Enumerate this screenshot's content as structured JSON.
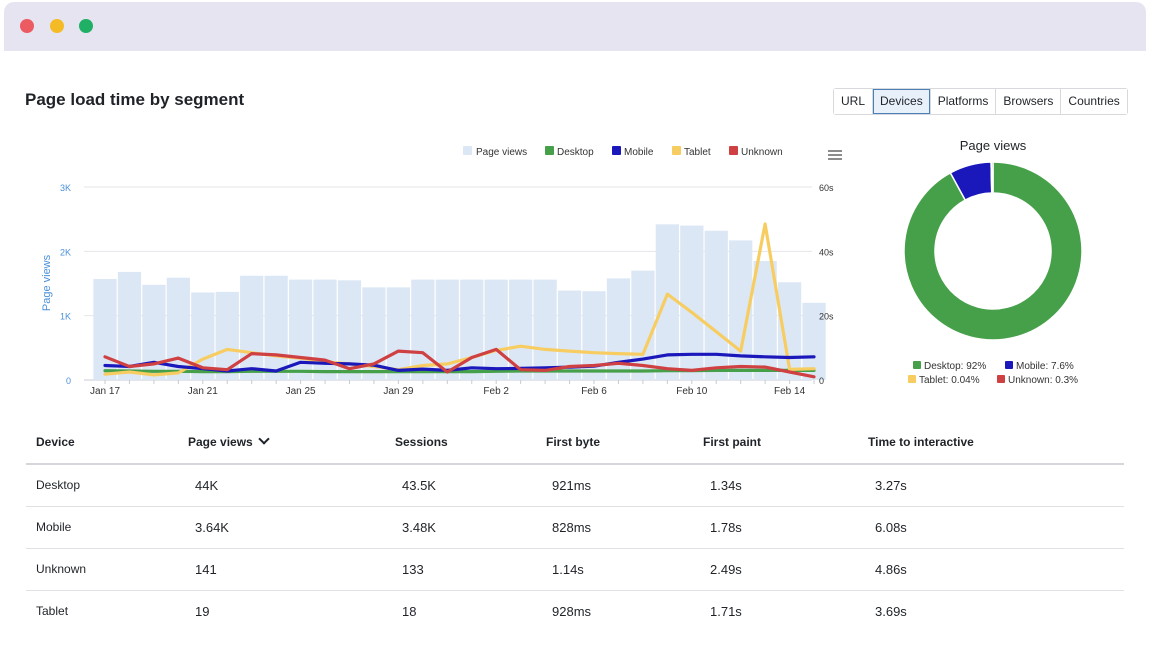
{
  "window": {
    "controls": [
      "close",
      "minimize",
      "maximize"
    ]
  },
  "header": {
    "title": "Page load time by segment"
  },
  "segments": {
    "items": [
      "URL",
      "Devices",
      "Platforms",
      "Browsers",
      "Countries"
    ],
    "active": "Devices"
  },
  "colors": {
    "page_views": "#dce7f5",
    "desktop": "#46a049",
    "mobile": "#1a18bb",
    "tablet": "#f7cd62",
    "unknown": "#cf4043",
    "axis_left": "#4a90d9"
  },
  "chart_data": [
    {
      "type": "bar+line",
      "title": "",
      "legend": [
        "Page views",
        "Desktop",
        "Mobile",
        "Tablet",
        "Unknown"
      ],
      "legend_position": "top-right",
      "ylabel": "Page views",
      "y_left_ticks": [
        "0",
        "1K",
        "2K",
        "3K"
      ],
      "y_left_range": [
        0,
        3000
      ],
      "y_right_ticks": [
        "0",
        "20s",
        "40s",
        "60s"
      ],
      "y_right_range": [
        0,
        60
      ],
      "x_ticks": [
        "Jan 17",
        "Jan 21",
        "Jan 25",
        "Jan 29",
        "Feb 2",
        "Feb 6",
        "Feb 10",
        "Feb 14"
      ],
      "x_start_day": 17,
      "page_views": [
        1570,
        1680,
        1480,
        1590,
        1360,
        1370,
        1620,
        1620,
        1560,
        1560,
        1550,
        1440,
        1440,
        1560,
        1560,
        1560,
        1560,
        1560,
        1560,
        1390,
        1380,
        1580,
        1700,
        2420,
        2400,
        2320,
        2170,
        1850,
        1520,
        1200
      ],
      "series": [
        {
          "name": "Desktop",
          "values": [
            2.9,
            2.8,
            2.7,
            2.7,
            2.6,
            2.6,
            2.7,
            2.7,
            2.7,
            2.6,
            2.6,
            2.6,
            2.6,
            2.6,
            2.6,
            2.6,
            2.7,
            2.8,
            2.8,
            2.8,
            2.8,
            2.8,
            2.8,
            2.9,
            2.9,
            3.0,
            3.0,
            3.0,
            3.0,
            3.0
          ]
        },
        {
          "name": "Mobile",
          "values": [
            4.5,
            4.2,
            5.5,
            4.2,
            3.5,
            2.8,
            3.5,
            2.8,
            5.5,
            5.2,
            5.0,
            4.6,
            3.0,
            3.4,
            3.0,
            3.8,
            3.5,
            3.6,
            3.8,
            4.0,
            4.3,
            5.5,
            6.5,
            7.8,
            8.0,
            8.0,
            7.5,
            7.2,
            7.0,
            7.2
          ]
        },
        {
          "name": "Tablet",
          "values": [
            1.8,
            2.5,
            1.6,
            2.2,
            6.5,
            9.5,
            8.5,
            7.5,
            6.8,
            5.6,
            5.0,
            4.2,
            3.2,
            4.5,
            5.0,
            7.0,
            9.2,
            10.5,
            9.5,
            9.0,
            8.5,
            8.2,
            8.0,
            26.7,
            21.0,
            15.0,
            9.0,
            48.5,
            3.3,
            3.5
          ]
        },
        {
          "name": "Unknown",
          "values": [
            7.2,
            4.2,
            5.0,
            6.8,
            3.8,
            3.2,
            8.2,
            7.8,
            7.0,
            6.2,
            3.5,
            5.0,
            9.0,
            8.5,
            2.5,
            7.0,
            9.5,
            3.2,
            3.0,
            4.2,
            4.5,
            5.2,
            4.5,
            3.5,
            3.0,
            3.8,
            4.2,
            4.0,
            2.5,
            1.0
          ]
        }
      ]
    },
    {
      "type": "pie",
      "title": "Page views",
      "labels": [
        "Desktop",
        "Mobile",
        "Tablet",
        "Unknown"
      ],
      "values": [
        92,
        7.6,
        0.04,
        0.3
      ],
      "legend": [
        "Desktop: 92%",
        "Mobile: 7.6%",
        "Tablet: 0.04%",
        "Unknown: 0.3%"
      ]
    }
  ],
  "table": {
    "headers": [
      "Device",
      "Page views",
      "Sessions",
      "First byte",
      "First paint",
      "Time to interactive"
    ],
    "rows": [
      [
        "Desktop",
        "44K",
        "43.5K",
        "921ms",
        "1.34s",
        "3.27s"
      ],
      [
        "Mobile",
        "3.64K",
        "3.48K",
        "828ms",
        "1.78s",
        "6.08s"
      ],
      [
        "Unknown",
        "141",
        "133",
        "1.14s",
        "2.49s",
        "4.86s"
      ],
      [
        "Tablet",
        "19",
        "18",
        "928ms",
        "1.71s",
        "3.69s"
      ]
    ]
  }
}
